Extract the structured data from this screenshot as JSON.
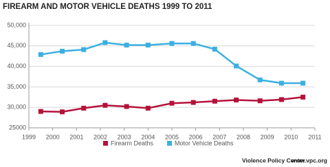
{
  "chart_data": {
    "type": "line",
    "title": "FIREARM AND MOTOR VEHICLE DEATHS 1999 TO 2011",
    "x": [
      1999.5,
      2000.4,
      2001.3,
      2002.2,
      2003.1,
      2004.0,
      2005.0,
      2005.9,
      2006.8,
      2007.7,
      2008.7,
      2009.6,
      2010.5
    ],
    "series": [
      {
        "name": "Firearm Deaths",
        "color": "#b5123a",
        "values": [
          29000,
          28900,
          29800,
          30500,
          30200,
          29800,
          31000,
          31200,
          31500,
          31800,
          31600,
          31900,
          32500
        ]
      },
      {
        "name": "Motor Vehicle Deaths",
        "color": "#3bb0e0",
        "values": [
          42900,
          43700,
          44100,
          45800,
          45200,
          45200,
          45600,
          45600,
          44200,
          40100,
          36700,
          35900,
          35900
        ]
      }
    ],
    "xlim": [
      1999,
      2011
    ],
    "xticks": [
      1999,
      2000,
      2001,
      2002,
      2003,
      2004,
      2005,
      2006,
      2007,
      2008,
      2009,
      2010,
      2011
    ],
    "ylim": [
      25000,
      50000
    ],
    "yticks": [
      {
        "value": 25000,
        "label": "25000"
      },
      {
        "value": 30000,
        "label": "30,000"
      },
      {
        "value": 35000,
        "label": "35,000"
      },
      {
        "value": 40000,
        "label": "40,000"
      },
      {
        "value": 45000,
        "label": "45,000"
      },
      {
        "value": 50000,
        "label": "50,000"
      }
    ],
    "grid": true,
    "legend": "bottom",
    "source": "Violence Policy Center",
    "source_url": "www.vpc.org"
  }
}
